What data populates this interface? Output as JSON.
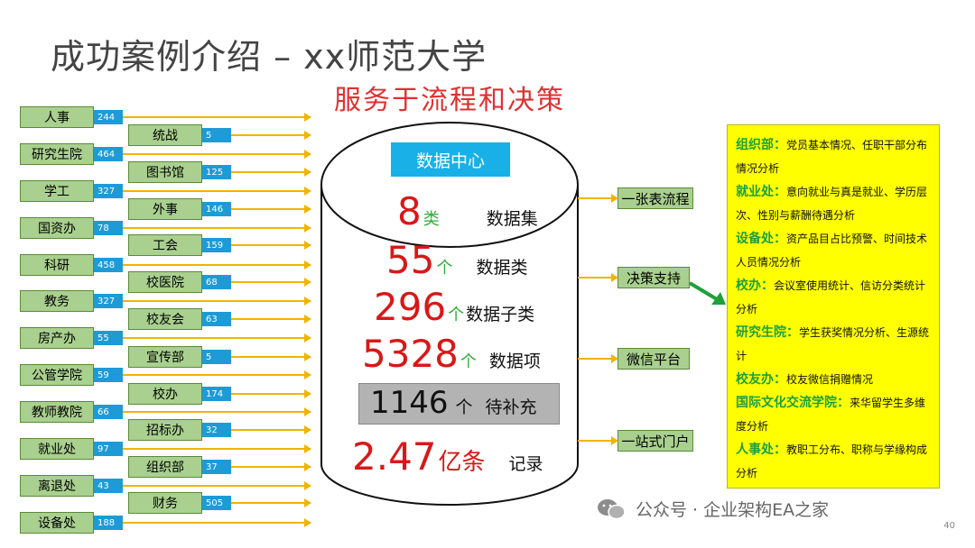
{
  "title": "成功案例介绍 – xx师范大学",
  "subtitle": "服务于流程和决策",
  "departments_col1": [
    {
      "name": "人事",
      "count": "244"
    },
    {
      "name": "研究生院",
      "count": "464"
    },
    {
      "name": "学工",
      "count": "327"
    },
    {
      "name": "国资办",
      "count": "78"
    },
    {
      "name": "科研",
      "count": "458"
    },
    {
      "name": "教务",
      "count": "327"
    },
    {
      "name": "房产办",
      "count": "55"
    },
    {
      "name": "公管学院",
      "count": "59"
    },
    {
      "name": "教师教院",
      "count": "66"
    },
    {
      "name": "就业处",
      "count": "97"
    },
    {
      "name": "离退处",
      "count": "43"
    },
    {
      "name": "设备处",
      "count": "188"
    }
  ],
  "departments_col2": [
    {
      "name": "统战",
      "count": "5"
    },
    {
      "name": "图书馆",
      "count": "125"
    },
    {
      "name": "外事",
      "count": "146"
    },
    {
      "name": "工会",
      "count": "159"
    },
    {
      "name": "校医院",
      "count": "68"
    },
    {
      "name": "校友会",
      "count": "63"
    },
    {
      "name": "宣传部",
      "count": "5"
    },
    {
      "name": "校办",
      "count": "174"
    },
    {
      "name": "招标办",
      "count": "32"
    },
    {
      "name": "组织部",
      "count": "37"
    },
    {
      "name": "财务",
      "count": "505"
    }
  ],
  "data_center": {
    "label": "数据中心",
    "stats": [
      {
        "num": "8",
        "unit": "类",
        "label": "数据集"
      },
      {
        "num": "55",
        "unit": "个",
        "label": "数据类"
      },
      {
        "num": "296",
        "unit": "个",
        "label": "数据子类"
      },
      {
        "num": "5328",
        "unit": "个",
        "label": "数据项"
      },
      {
        "num": "1146",
        "unit": "个",
        "label": "待补充"
      },
      {
        "num": "2.47",
        "unit": "亿条",
        "label": "记录"
      }
    ]
  },
  "outputs": [
    "一张表流程",
    "决策支持",
    "微信平台",
    "一站式门户"
  ],
  "analysis": [
    {
      "org": "组织部：",
      "text": "党员基本情况、任职干部分布情况分析"
    },
    {
      "org": "就业处：",
      "text": "意向就业与真是就业、学历层次、性别与薪酬待遇分析"
    },
    {
      "org": "设备处：",
      "text": "资产品目占比预警、时间技术人员情况分析"
    },
    {
      "org": "校办：",
      "text": "会议室使用统计、信访分类统计分析"
    },
    {
      "org": "研究生院：",
      "text": "学生获奖情况分析、生源统计"
    },
    {
      "org": "校友办：",
      "text": "校友微信捐赠情况"
    },
    {
      "org": "国际文化交流学院：",
      "text": "来华留学生多维度分析"
    },
    {
      "org": "人事处：",
      "text": "教职工分布、职称与学缘构成分析"
    }
  ],
  "watermark": "公众号 · 企业架构EA之家",
  "page_number": "40",
  "colors": {
    "dept_green": "#a9d08e",
    "count_blue": "#1e9bd7",
    "arrow_orange": "#f0b400",
    "stat_red": "#d81818",
    "unit_green": "#2eae3a",
    "panel_yellow": "#ffff00",
    "org_green": "#1ea03a",
    "subtitle_red": "#e03030",
    "dc_blue": "#19b0e8"
  },
  "icons": {
    "watermark_icon": "wechat-icon",
    "decision_arrow": "arrow-icon"
  }
}
